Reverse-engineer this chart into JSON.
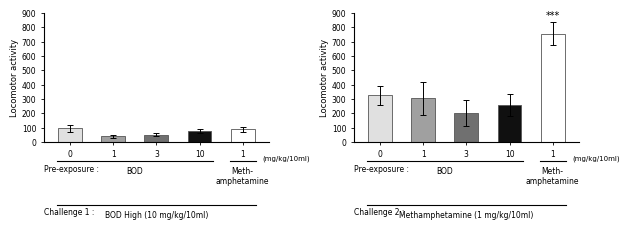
{
  "left": {
    "values": [
      95,
      42,
      52,
      78,
      90
    ],
    "errors": [
      22,
      10,
      12,
      15,
      18
    ],
    "bar_colors": [
      "#e0e0e0",
      "#a0a0a0",
      "#707070",
      "#101010",
      "#ffffff"
    ],
    "bar_edgecolors": [
      "#555555",
      "#555555",
      "#555555",
      "#555555",
      "#555555"
    ],
    "xtick_labels": [
      "0",
      "1",
      "3",
      "10",
      "1"
    ],
    "xlabel_right": "(mg/kg/10ml)",
    "ylabel": "Locomotor activity",
    "ylim": [
      0,
      900
    ],
    "yticks": [
      0,
      100,
      200,
      300,
      400,
      500,
      600,
      700,
      800,
      900
    ],
    "pre_exposure_bod": "BOD",
    "pre_exposure_meth": "Meth-\namphetamine",
    "challenge_label": "Challenge 1 :",
    "challenge_text": "BOD High (10 mg/kg/10ml)",
    "bod_bar_indices": [
      0,
      1,
      2,
      3
    ],
    "meth_bar_indices": [
      4
    ]
  },
  "right": {
    "values": [
      325,
      305,
      205,
      260,
      755
    ],
    "errors": [
      65,
      115,
      90,
      75,
      80
    ],
    "bar_colors": [
      "#e0e0e0",
      "#a0a0a0",
      "#707070",
      "#101010",
      "#ffffff"
    ],
    "bar_edgecolors": [
      "#555555",
      "#555555",
      "#555555",
      "#555555",
      "#555555"
    ],
    "xtick_labels": [
      "0",
      "1",
      "3",
      "10",
      "1"
    ],
    "xlabel_right": "(mg/kg/10ml)",
    "ylabel": "Locomotor activity",
    "ylim": [
      0,
      900
    ],
    "yticks": [
      0,
      100,
      200,
      300,
      400,
      500,
      600,
      700,
      800,
      900
    ],
    "pre_exposure_bod": "BOD",
    "pre_exposure_meth": "Meth-\namphetamine",
    "challenge_label": "Challenge 2 :",
    "challenge_text": "Methamphetamine (1 mg/kg/10ml)",
    "significance_bar": 4,
    "significance_label": "***",
    "bod_bar_indices": [
      0,
      1,
      2,
      3
    ],
    "meth_bar_indices": [
      4
    ]
  },
  "pre_exposure_label": "Pre-exposure :",
  "background_color": "#ffffff",
  "label_fontsize": 5.5,
  "tick_fontsize": 5.5,
  "axis_fontsize": 6,
  "bar_width": 0.55
}
